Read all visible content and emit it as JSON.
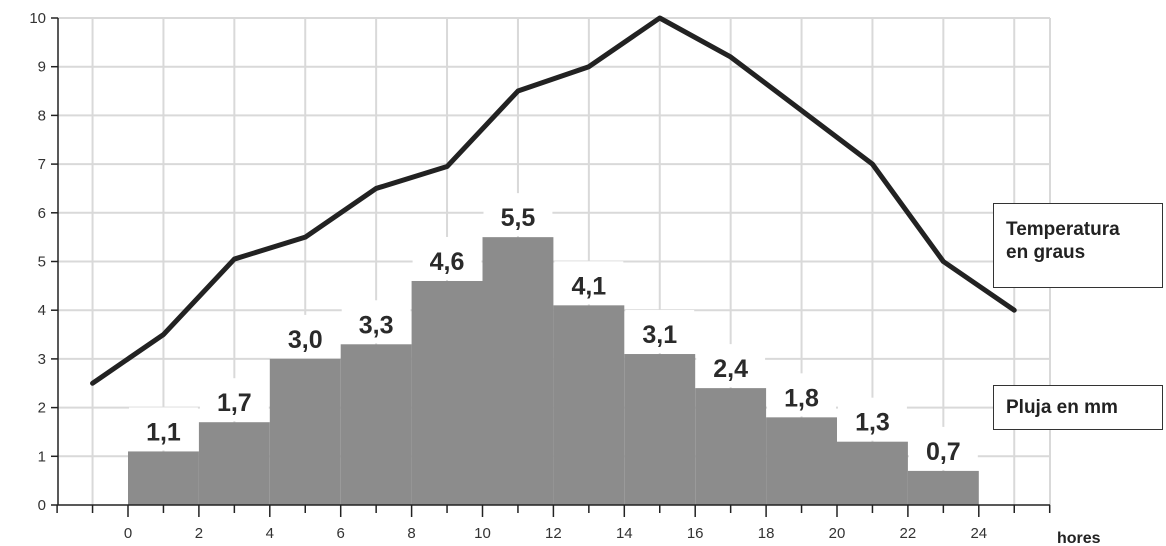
{
  "chart_data": {
    "type": "bar",
    "xlabel": "hores",
    "x_ticks": [
      0,
      2,
      4,
      6,
      8,
      10,
      12,
      14,
      16,
      18,
      20,
      22,
      24
    ],
    "y_ticks": [
      0,
      1,
      2,
      3,
      4,
      5,
      6,
      7,
      8,
      9,
      10
    ],
    "ylim": [
      0,
      10
    ],
    "xlim": [
      -2,
      26
    ],
    "grid": true,
    "series": [
      {
        "name": "Pluja en mm",
        "type": "bar",
        "bins": [
          [
            0,
            2
          ],
          [
            2,
            4
          ],
          [
            4,
            6
          ],
          [
            6,
            8
          ],
          [
            8,
            10
          ],
          [
            10,
            12
          ],
          [
            12,
            14
          ],
          [
            14,
            16
          ],
          [
            16,
            18
          ],
          [
            18,
            20
          ],
          [
            20,
            22
          ],
          [
            22,
            24
          ]
        ],
        "values": [
          1.1,
          1.7,
          3.0,
          3.3,
          4.6,
          5.5,
          4.1,
          3.1,
          2.4,
          1.8,
          1.3,
          0.7
        ],
        "labels": [
          "1,1",
          "1,7",
          "3,0",
          "3,3",
          "4,6",
          "5,5",
          "4,1",
          "3,1",
          "2,4",
          "1,8",
          "1,3",
          "0,7"
        ],
        "color": "#8c8c8c"
      },
      {
        "name": "Temperatura en graus",
        "type": "line",
        "x": [
          -1,
          1,
          3,
          5,
          7,
          9,
          11,
          13,
          15,
          17,
          19,
          21,
          23,
          25
        ],
        "y": [
          2.5,
          3.5,
          5.05,
          5.5,
          6.5,
          6.95,
          8.5,
          9.0,
          10.0,
          9.2,
          8.1,
          7.0,
          5.0,
          4.0
        ],
        "color": "#222222"
      }
    ],
    "legend": [
      {
        "line1": "Temperatura",
        "line2": "en graus"
      },
      {
        "line1": "Pluja en mm"
      }
    ],
    "legend_position": "right"
  }
}
